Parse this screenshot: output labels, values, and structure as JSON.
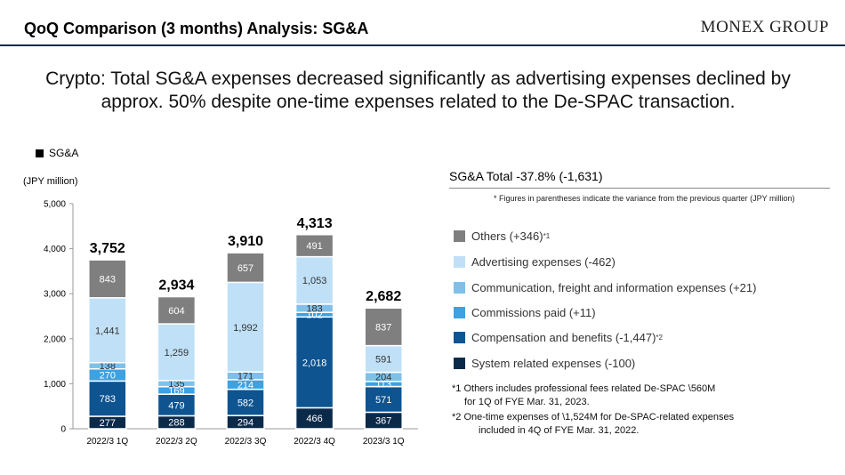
{
  "header": {
    "title": "QoQ Comparison (3 months) Analysis: SG&A",
    "logo": "MONEX GROUP"
  },
  "headline": {
    "line1": "Crypto: Total SG&A expenses decreased significantly as advertising expenses declined by",
    "line2": "approx. 50% despite one-time expenses related to the De-SPAC transaction."
  },
  "legend_label": "SG&A",
  "unit_label": "(JPY million)",
  "right_panel": {
    "title": "SG&A Total -37.8% (-1,631)",
    "note": "* Figures in parentheses indicate the variance from the previous quarter (JPY million)",
    "categories": [
      {
        "label": "Others (+346)",
        "sup": "*1",
        "color": "#7f7f7f"
      },
      {
        "label": "Advertising expenses (-462)",
        "sup": "",
        "color": "#bfe0f7"
      },
      {
        "label": "Communication, freight and information expenses (+21)",
        "sup": "",
        "color": "#7fc0ea"
      },
      {
        "label": "Commissions paid (+11)",
        "sup": "",
        "color": "#3da1e2"
      },
      {
        "label": "Compensation and benefits (-1,447)",
        "sup": "*2",
        "color": "#0e5490"
      },
      {
        "label": "System related expenses (-100)",
        "sup": "",
        "color": "#0b2a4a"
      }
    ],
    "footnotes": [
      "*1 Others includes professional fees related De-SPAC \\560M",
      "for 1Q of FYE Mar. 31, 2023.",
      "*2 One-time expenses of \\1,524M for De-SPAC-related expenses",
      "included in 4Q of FYE Mar. 31, 2022."
    ]
  },
  "chart_data": {
    "type": "bar",
    "stacked": true,
    "categories": [
      "2022/3 1Q",
      "2022/3 2Q",
      "2022/3 3Q",
      "2022/3 4Q",
      "2023/3 1Q"
    ],
    "ylim": [
      0,
      5000
    ],
    "yticks": [
      "0",
      "1,000",
      "2,000",
      "3,000",
      "4,000",
      "5,000"
    ],
    "totals": [
      "3,752",
      "2,934",
      "3,910",
      "4,313",
      "2,682"
    ],
    "series": [
      {
        "name": "System related expenses",
        "color": "#0b2a4a",
        "values": [
          277,
          288,
          294,
          466,
          367
        ],
        "labels": [
          "277",
          "288",
          "294",
          "466",
          "367"
        ]
      },
      {
        "name": "Compensation and benefits",
        "color": "#0e5490",
        "values": [
          783,
          479,
          582,
          2018,
          571
        ],
        "labels": [
          "783",
          "479",
          "582",
          "2,018",
          "571"
        ]
      },
      {
        "name": "Commissions paid",
        "color": "#3da1e2",
        "values": [
          270,
          169,
          214,
          102,
          113
        ],
        "labels": [
          "270",
          "169",
          "214",
          "102",
          "113"
        ]
      },
      {
        "name": "Communication, freight and information expenses",
        "color": "#7fc0ea",
        "values": [
          138,
          135,
          171,
          183,
          204
        ],
        "labels": [
          "138",
          "135",
          "171",
          "183",
          "204"
        ]
      },
      {
        "name": "Advertising expenses",
        "color": "#bfe0f7",
        "values": [
          1441,
          1259,
          1992,
          1053,
          591
        ],
        "labels": [
          "1,441",
          "1,259",
          "1,992",
          "1,053",
          "591"
        ]
      },
      {
        "name": "Others",
        "color": "#7f7f7f",
        "values": [
          843,
          604,
          657,
          491,
          837
        ],
        "labels": [
          "843",
          "604",
          "657",
          "491",
          "837"
        ]
      }
    ]
  }
}
